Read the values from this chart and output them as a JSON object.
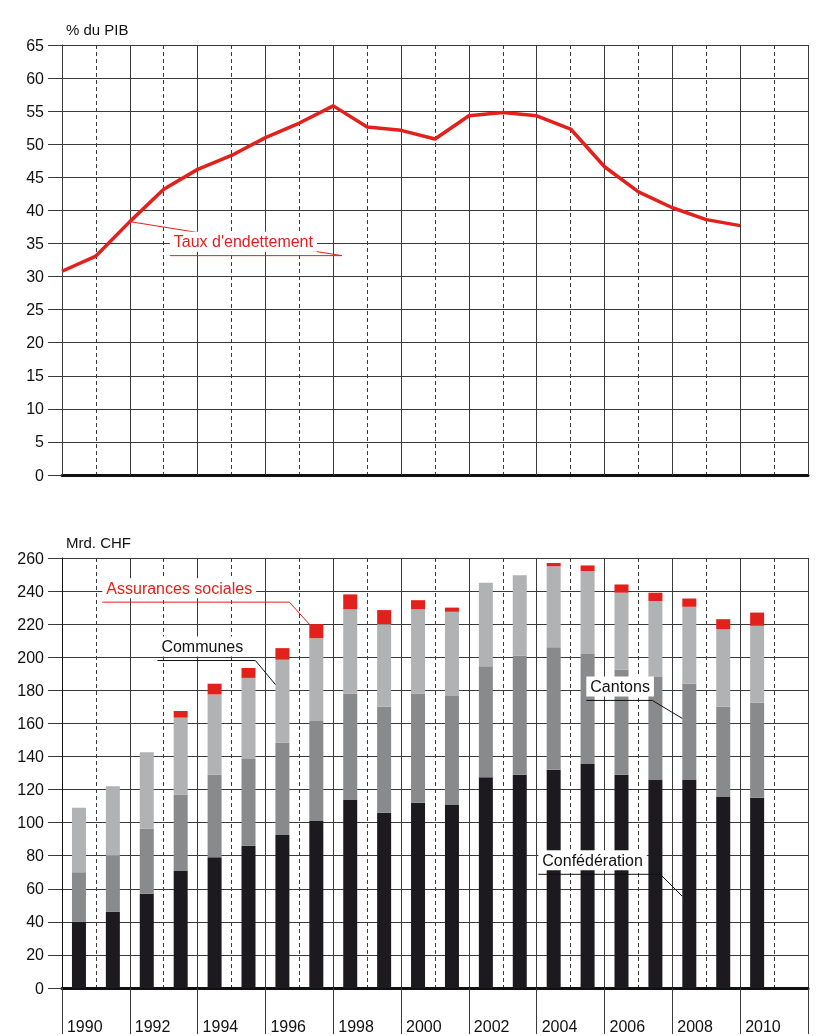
{
  "chart_data": [
    {
      "type": "line",
      "ylabel": "% du PIB",
      "categories": [
        null,
        null,
        null,
        null,
        null,
        null,
        null,
        null,
        null,
        null,
        null,
        null,
        null,
        null,
        null,
        null,
        null,
        null,
        null,
        null,
        null,
        null,
        null
      ],
      "ylim": [
        0,
        65
      ],
      "yticks": [
        0,
        5,
        10,
        15,
        20,
        25,
        30,
        35,
        40,
        45,
        50,
        55,
        60,
        65
      ],
      "grid": true,
      "tick_labels": "y",
      "marker": "none",
      "series": [
        {
          "name": "Taux d'endettement",
          "color": "#e3211c",
          "values": [
            30.8,
            33.1,
            38.3,
            43.2,
            46.2,
            48.3,
            51.0,
            53.2,
            55.8,
            52.6,
            52.1,
            50.8,
            54.3,
            54.8,
            54.3,
            52.3,
            46.6,
            42.8,
            40.4,
            38.6,
            37.7,
            null,
            null
          ]
        }
      ]
    },
    {
      "type": "bar",
      "stacked": true,
      "ylabel": "Mrd. CHF",
      "categories": [
        "1990",
        null,
        "1992",
        null,
        "1994",
        null,
        "1996",
        null,
        "1998",
        null,
        "2000",
        null,
        "2002",
        null,
        "2004",
        null,
        "2006",
        null,
        "2008",
        null,
        "2010",
        null
      ],
      "ylim": [
        0,
        260
      ],
      "yticks": [
        0,
        20,
        40,
        60,
        80,
        100,
        120,
        140,
        160,
        180,
        200,
        220,
        240,
        260
      ],
      "grid": true,
      "series": [
        {
          "name": "Confédération",
          "color": "#1c1a1f",
          "values": [
            40,
            46,
            57,
            71,
            79,
            86,
            92.5,
            101,
            114,
            106,
            112,
            111,
            127.5,
            129,
            132,
            135.5,
            129,
            126,
            126,
            115.5,
            115,
            null
          ]
        },
        {
          "name": "Cantons",
          "color": "#898a8c",
          "values": [
            30,
            34,
            39.5,
            46,
            50,
            52.5,
            56,
            60.5,
            64,
            64,
            66,
            65.5,
            67,
            72,
            74,
            66.5,
            63.5,
            62,
            58,
            54.5,
            57.5,
            null
          ]
        },
        {
          "name": "Communes",
          "color": "#b1b2b4",
          "values": [
            39,
            42,
            46,
            46.5,
            48.5,
            49,
            50,
            50,
            51,
            50,
            51,
            51,
            50.5,
            48.5,
            49,
            50,
            46.5,
            46,
            46.5,
            47,
            46.5,
            null
          ]
        },
        {
          "name": "Assurances sociales",
          "color": "#e3211c",
          "values": [
            0,
            0,
            0,
            4,
            6.5,
            6,
            7,
            8.5,
            9,
            8.5,
            5.5,
            2.5,
            0,
            0,
            2,
            3.5,
            5,
            5,
            5,
            6,
            8,
            null
          ]
        }
      ]
    }
  ]
}
